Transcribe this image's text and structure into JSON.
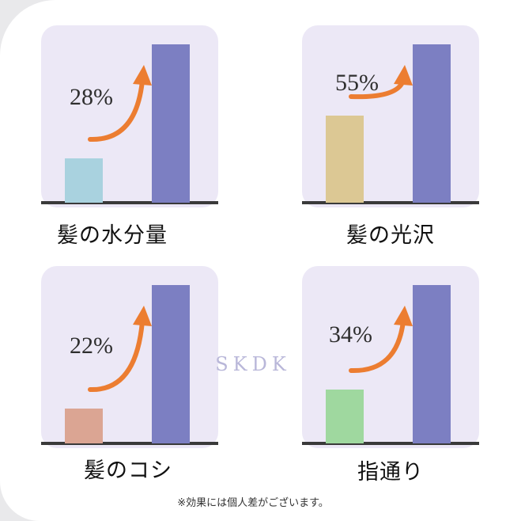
{
  "chart_data": [
    {
      "type": "bar",
      "label": "髪の水分量",
      "annotation": "28%",
      "values": [
        0.28,
        1.0
      ],
      "before_color": "#a9d2df",
      "after_color": "#7c7fc2"
    },
    {
      "type": "bar",
      "label": "髪の光沢",
      "annotation": "55%",
      "values": [
        0.55,
        1.0
      ],
      "before_color": "#dcc894",
      "after_color": "#7c7fc2"
    },
    {
      "type": "bar",
      "label": "髪のコシ",
      "annotation": "22%",
      "values": [
        0.22,
        1.0
      ],
      "before_color": "#dba593",
      "after_color": "#7c7fc2"
    },
    {
      "type": "bar",
      "label": "指通り",
      "annotation": "34%",
      "values": [
        0.34,
        1.0
      ],
      "before_color": "#9fd89f",
      "after_color": "#7c7fc2"
    }
  ],
  "arrow_color": "#ec7d31",
  "watermark": "SKDK",
  "note": "※効果には個人差がございます。"
}
